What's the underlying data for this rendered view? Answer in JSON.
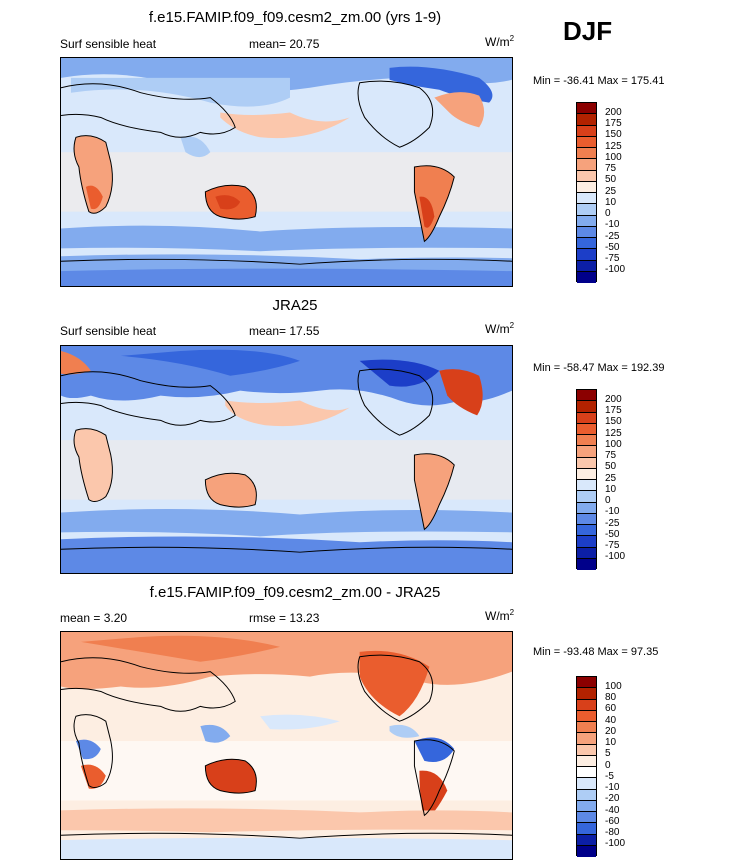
{
  "season": "DJF",
  "panels": [
    {
      "title": "f.e15.FAMIP.f09_f09.cesm2_zm.00 (yrs 1-9)",
      "left_label": "Surf sensible heat",
      "center_label": "mean=  20.75",
      "units_base": "W/m",
      "units_exp": "2",
      "minmax": "Min = -36.41 Max = 175.41",
      "levels": [
        "200",
        "175",
        "150",
        "125",
        "100",
        "75",
        "50",
        "25",
        "10",
        "0",
        "-10",
        "-25",
        "-50",
        "-75",
        "-100"
      ],
      "colors": [
        "#8b0000",
        "#b22200",
        "#d8401a",
        "#ea5d2e",
        "#f07f50",
        "#f6a27c",
        "#fbc7ac",
        "#fdeee2",
        "#d9e8fb",
        "#aecdf5",
        "#82abee",
        "#5d89e6",
        "#3566dc",
        "#1c3ec8",
        "#0c1fa6",
        "#00008a"
      ]
    },
    {
      "title": "JRA25",
      "left_label": "Surf sensible heat",
      "center_label": "mean=  17.55",
      "units_base": "W/m",
      "units_exp": "2",
      "minmax": "Min = -58.47 Max = 192.39",
      "levels": [
        "200",
        "175",
        "150",
        "125",
        "100",
        "75",
        "50",
        "25",
        "10",
        "0",
        "-10",
        "-25",
        "-50",
        "-75",
        "-100"
      ],
      "colors": [
        "#8b0000",
        "#b22200",
        "#d8401a",
        "#ea5d2e",
        "#f07f50",
        "#f6a27c",
        "#fbc7ac",
        "#fdeee2",
        "#d9e8fb",
        "#aecdf5",
        "#82abee",
        "#5d89e6",
        "#3566dc",
        "#1c3ec8",
        "#0c1fa6",
        "#00008a"
      ]
    },
    {
      "title": "f.e15.FAMIP.f09_f09.cesm2_zm.00 - JRA25",
      "left_label": "mean =   3.20",
      "center_label": "rmse =  13.23",
      "units_base": "W/m",
      "units_exp": "2",
      "minmax": "Min = -93.48 Max =  97.35",
      "levels": [
        "100",
        "80",
        "60",
        "40",
        "20",
        "10",
        "5",
        "0",
        "-5",
        "-10",
        "-20",
        "-40",
        "-60",
        "-80",
        "-100"
      ],
      "colors": [
        "#8b0000",
        "#b22200",
        "#d8401a",
        "#ea5d2e",
        "#f07f50",
        "#f6a27c",
        "#fbc7ac",
        "#fdeee2",
        "#ffffff",
        "#d9e8fb",
        "#aecdf5",
        "#82abee",
        "#5d89e6",
        "#3566dc",
        "#0c1fa6",
        "#00008a"
      ]
    }
  ]
}
